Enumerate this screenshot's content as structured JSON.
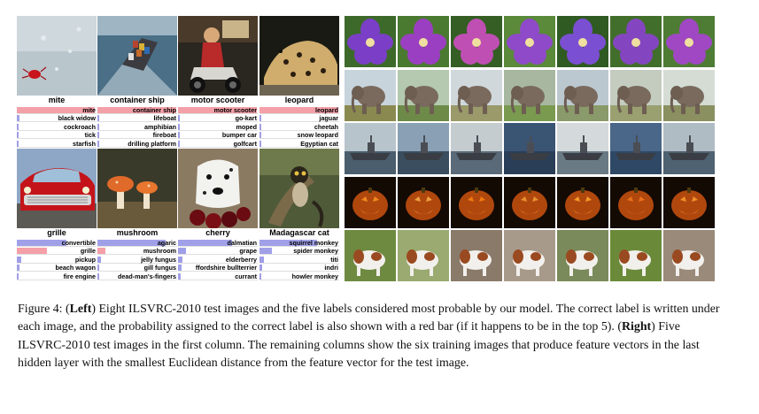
{
  "left_panel": {
    "items": [
      {
        "label": "mite",
        "predictions": [
          {
            "name": "mite",
            "p": 0.98,
            "correct": true
          },
          {
            "name": "black widow",
            "p": 0.03,
            "correct": false
          },
          {
            "name": "cockroach",
            "p": 0.02,
            "correct": false
          },
          {
            "name": "tick",
            "p": 0.01,
            "correct": false
          },
          {
            "name": "starfish",
            "p": 0.01,
            "correct": false
          }
        ]
      },
      {
        "label": "container ship",
        "predictions": [
          {
            "name": "container ship",
            "p": 0.99,
            "correct": true
          },
          {
            "name": "lifeboat",
            "p": 0.02,
            "correct": false
          },
          {
            "name": "amphibian",
            "p": 0.01,
            "correct": false
          },
          {
            "name": "fireboat",
            "p": 0.01,
            "correct": false
          },
          {
            "name": "drilling platform",
            "p": 0.01,
            "correct": false
          }
        ]
      },
      {
        "label": "motor scooter",
        "predictions": [
          {
            "name": "motor scooter",
            "p": 0.99,
            "correct": true
          },
          {
            "name": "go-kart",
            "p": 0.02,
            "correct": false
          },
          {
            "name": "moped",
            "p": 0.01,
            "correct": false
          },
          {
            "name": "bumper car",
            "p": 0.01,
            "correct": false
          },
          {
            "name": "golfcart",
            "p": 0.01,
            "correct": false
          }
        ]
      },
      {
        "label": "leopard",
        "predictions": [
          {
            "name": "leopard",
            "p": 0.99,
            "correct": true
          },
          {
            "name": "jaguar",
            "p": 0.02,
            "correct": false
          },
          {
            "name": "cheetah",
            "p": 0.02,
            "correct": false
          },
          {
            "name": "snow leopard",
            "p": 0.01,
            "correct": false
          },
          {
            "name": "Egyptian cat",
            "p": 0.01,
            "correct": false
          }
        ]
      },
      {
        "label": "grille",
        "predictions": [
          {
            "name": "convertible",
            "p": 0.62,
            "correct": false
          },
          {
            "name": "grille",
            "p": 0.38,
            "correct": true
          },
          {
            "name": "pickup",
            "p": 0.05,
            "correct": false
          },
          {
            "name": "beach wagon",
            "p": 0.03,
            "correct": false
          },
          {
            "name": "fire engine",
            "p": 0.02,
            "correct": false
          }
        ]
      },
      {
        "label": "mushroom",
        "predictions": [
          {
            "name": "agaric",
            "p": 0.85,
            "correct": false
          },
          {
            "name": "mushroom",
            "p": 0.1,
            "correct": true
          },
          {
            "name": "jelly fungus",
            "p": 0.04,
            "correct": false
          },
          {
            "name": "gill fungus",
            "p": 0.02,
            "correct": false
          },
          {
            "name": "dead-man's-fingers",
            "p": 0.01,
            "correct": false
          }
        ]
      },
      {
        "label": "cherry",
        "predictions": [
          {
            "name": "dalmatian",
            "p": 0.68,
            "correct": false
          },
          {
            "name": "grape",
            "p": 0.1,
            "correct": false
          },
          {
            "name": "elderberry",
            "p": 0.06,
            "correct": false
          },
          {
            "name": "ffordshire bullterrier",
            "p": 0.04,
            "correct": false
          },
          {
            "name": "currant",
            "p": 0.03,
            "correct": false
          }
        ]
      },
      {
        "label": "Madagascar cat",
        "predictions": [
          {
            "name": "squirrel monkey",
            "p": 0.72,
            "correct": false
          },
          {
            "name": "spider monkey",
            "p": 0.15,
            "correct": false
          },
          {
            "name": "titi",
            "p": 0.05,
            "correct": false
          },
          {
            "name": "indri",
            "p": 0.03,
            "correct": false
          },
          {
            "name": "howler monkey",
            "p": 0.02,
            "correct": false
          }
        ]
      }
    ]
  },
  "right_panel": {
    "rows": [
      "flower",
      "elephant",
      "ship",
      "pumpkin",
      "dog"
    ]
  },
  "colors": {
    "correct_bar": "#f4a0a8",
    "other_bar": "#a0a0e8"
  },
  "caption": {
    "fig": "Figure 4: (",
    "left_bold": "Left",
    "left_text": ") Eight ILSVRC-2010 test images and the five labels considered most probable by our model. The correct label is written under each image, and the probability assigned to the correct label is also shown with a red bar (if it happens to be in the top 5). (",
    "right_bold": "Right",
    "right_text": ") Five ILSVRC-2010 test images in the first column. The remaining columns show the six training images that produce feature vectors in the last hidden layer with the smallest Euclidean distance from the feature vector for the test image."
  }
}
